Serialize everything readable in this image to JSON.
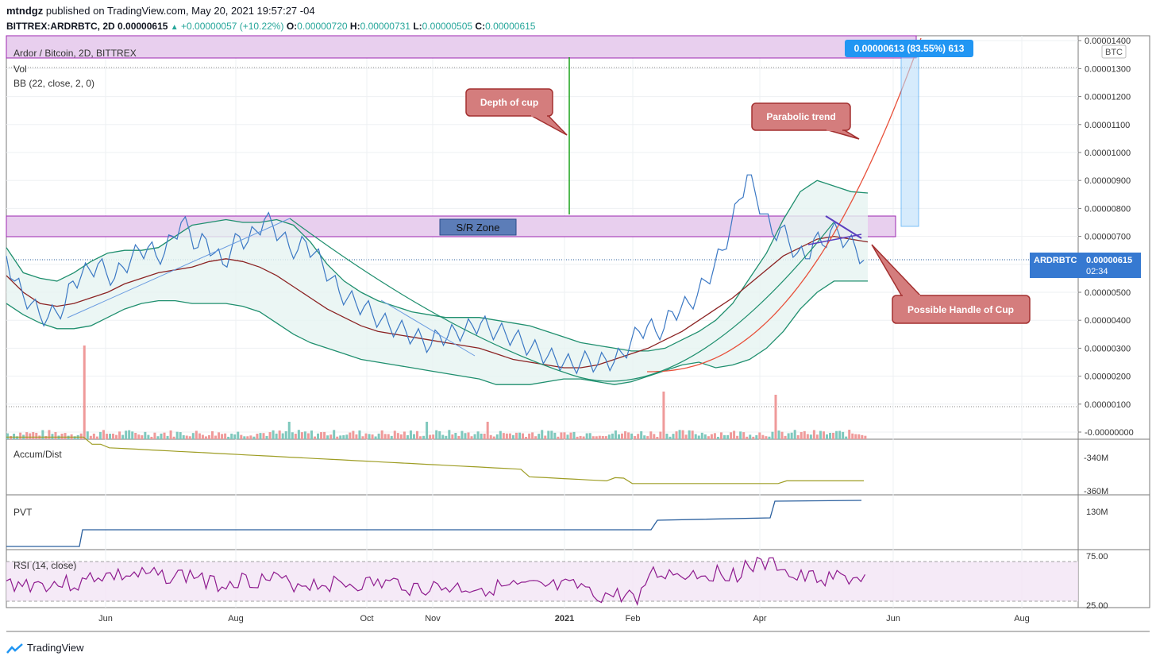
{
  "header": {
    "publisher": "mtndgz",
    "published_text": "published on TradingView.com, May 20, 2021 19:57:27 -04",
    "symbol": "BITTREX:ARDRBTC, 2D",
    "last": "0.00000615",
    "change": "+0.00000057 (+10.22%)",
    "o_label": "O:",
    "o": "0.00000720",
    "h_label": "H:",
    "h": "0.00000731",
    "l_label": "L:",
    "l": "0.00000505",
    "c_label": "C:",
    "c": "0.00000615"
  },
  "legends": {
    "main_title": "Ardor / Bitcoin, 2D, BITTREX",
    "vol": "Vol",
    "bb": "BB (22, close, 2, 0)",
    "accum": "Accum/Dist",
    "pvt": "PVT",
    "rsi": "RSI (14, close)"
  },
  "annotations": {
    "depth": "Depth of cup",
    "parabolic": "Parabolic trend",
    "handle": "Possible Handle of Cup",
    "sr_zone": "S/R Zone",
    "measure": "0.00000613 (83.55%) 613"
  },
  "price_tag": {
    "symbol": "ARDRBTC",
    "price": "0.00000615",
    "countdown": "02:34"
  },
  "currency": "BTC",
  "footer": {
    "brand": "TradingView"
  },
  "colors": {
    "price": "#3b78c4",
    "bb_band": "#1f8f6e",
    "bb_basis": "#8b2323",
    "bb_fill": "#e6f4f1",
    "sr_zone": "#e8cfee",
    "sr_border": "#9c27b0",
    "callout": "#d47d7d",
    "callout_border": "#a33030",
    "parabola": "#e8503a",
    "volume_up": "#7fc8bd",
    "volume_down": "#ef9a9a",
    "accum": "#9e9d24",
    "pvt": "#2a5f9e",
    "rsi": "#8e1a8e",
    "rsi_band": "#f3e5f5",
    "measure": "#2196f3"
  },
  "chart_data": {
    "type": "line",
    "price_axis": {
      "ticks": [
        "0.00001400",
        "0.00001300",
        "0.00001200",
        "0.00001100",
        "0.00001000",
        "0.00000900",
        "0.00000800",
        "0.00000700",
        "0.00000600",
        "0.00000500",
        "0.00000400",
        "0.00000300",
        "0.00000200",
        "0.00000100",
        "-0.00000000"
      ],
      "tick_values": [
        14,
        13,
        12,
        11,
        10,
        9,
        8,
        7,
        6,
        5,
        4,
        3,
        2,
        1,
        0
      ],
      "unit": "1e-6 BTC",
      "range": [
        0,
        14
      ]
    },
    "time_axis": {
      "labels": [
        "Jun",
        "Aug",
        "Oct",
        "Nov",
        "2021",
        "Feb",
        "Apr",
        "Jun",
        "Aug"
      ],
      "label_x": [
        133,
        79,
        172,
        225,
        0,
        0,
        0,
        0,
        0
      ],
      "note": "index of bar at which label sits"
    },
    "x_bars": 320,
    "close": [
      6.3,
      5.4,
      4.9,
      4.6,
      4.2,
      4.1,
      4.3,
      4.5,
      5.4,
      5.6,
      5.8,
      6.0,
      5.7,
      5.5,
      5.9,
      6.2,
      6.5,
      6.6,
      6.3,
      6.4,
      7.0,
      7.5,
      7.2,
      6.6,
      6.9,
      6.4,
      6.0,
      6.5,
      7.0,
      6.8,
      7.2,
      7.6,
      7.4,
      7.0,
      6.6,
      6.5,
      6.8,
      6.4,
      6.0,
      5.5,
      5.0,
      4.8,
      4.6,
      4.5,
      4.2,
      4.0,
      3.8,
      3.7,
      3.6,
      3.4,
      3.3,
      3.1,
      3.5,
      3.4,
      3.6,
      3.6,
      3.8,
      3.9,
      3.7,
      3.6,
      3.5,
      3.4,
      3.2,
      3.0,
      2.9,
      2.7,
      2.6,
      2.5,
      2.4,
      2.5,
      2.6,
      2.4,
      2.6,
      2.5,
      2.8,
      3.2,
      3.6,
      3.8,
      3.6,
      3.7,
      4.3,
      4.4,
      4.6,
      4.9,
      5.4,
      5.9,
      6.5,
      7.3,
      8.3,
      9.2,
      8.5,
      7.8,
      7.1,
      7.3,
      6.8,
      6.4,
      6.2,
      6.9,
      6.7,
      7.2,
      7.1,
      6.8,
      6.6,
      6.15
    ],
    "close_step_bars": 3,
    "bb_upper": [
      6.6,
      5.7,
      5.5,
      5.4,
      5.7,
      6.1,
      6.4,
      6.5,
      6.5,
      6.6,
      7.0,
      7.4,
      7.5,
      7.6,
      7.5,
      7.5,
      7.6,
      7.4,
      6.8,
      6.0,
      5.4,
      5.0,
      4.7,
      4.5,
      4.3,
      4.2,
      4.1,
      4.1,
      4.1,
      4.0,
      3.9,
      3.8,
      3.6,
      3.4,
      3.2,
      3.1,
      3.0,
      2.9,
      2.9,
      3.0,
      3.3,
      3.6,
      4.0,
      4.6,
      5.5,
      6.4,
      7.6,
      8.6,
      9.0,
      8.8,
      8.6,
      8.55
    ],
    "bb_basis": [
      5.6,
      5.0,
      4.6,
      4.5,
      4.6,
      4.8,
      5.0,
      5.3,
      5.5,
      5.7,
      5.8,
      5.9,
      6.1,
      6.2,
      6.1,
      5.9,
      5.6,
      5.2,
      4.8,
      4.4,
      4.1,
      3.8,
      3.6,
      3.5,
      3.4,
      3.3,
      3.2,
      3.1,
      3.0,
      2.8,
      2.6,
      2.5,
      2.4,
      2.3,
      2.3,
      2.4,
      2.6,
      2.8,
      3.0,
      3.3,
      3.6,
      4.0,
      4.4,
      4.8,
      5.3,
      5.8,
      6.3,
      6.6,
      6.9,
      7.0,
      6.9,
      6.8
    ],
    "bb_lower": [
      4.6,
      4.2,
      3.9,
      3.7,
      3.7,
      3.8,
      4.1,
      4.4,
      4.6,
      4.7,
      4.7,
      4.6,
      4.6,
      4.6,
      4.5,
      4.3,
      3.9,
      3.5,
      3.2,
      3.0,
      2.8,
      2.6,
      2.5,
      2.4,
      2.3,
      2.2,
      2.1,
      2.0,
      1.9,
      1.7,
      1.7,
      1.7,
      1.8,
      1.9,
      1.9,
      1.8,
      1.7,
      1.8,
      2.0,
      2.2,
      2.4,
      2.5,
      2.3,
      2.4,
      2.6,
      3.0,
      3.6,
      4.4,
      5.0,
      5.4,
      5.4,
      5.4
    ],
    "sr_zone": [
      7.0,
      7.7
    ],
    "accum_dist": {
      "ticks": [
        "-340M",
        "-360M"
      ],
      "tick_values": [
        -340,
        -360
      ]
    },
    "pvt": {
      "ticks": [
        "130M"
      ],
      "tick_values": [
        130
      ]
    },
    "rsi": {
      "ticks": [
        "75.00",
        "25.00"
      ],
      "tick_values": [
        75,
        25
      ],
      "band": [
        30,
        70
      ]
    }
  }
}
